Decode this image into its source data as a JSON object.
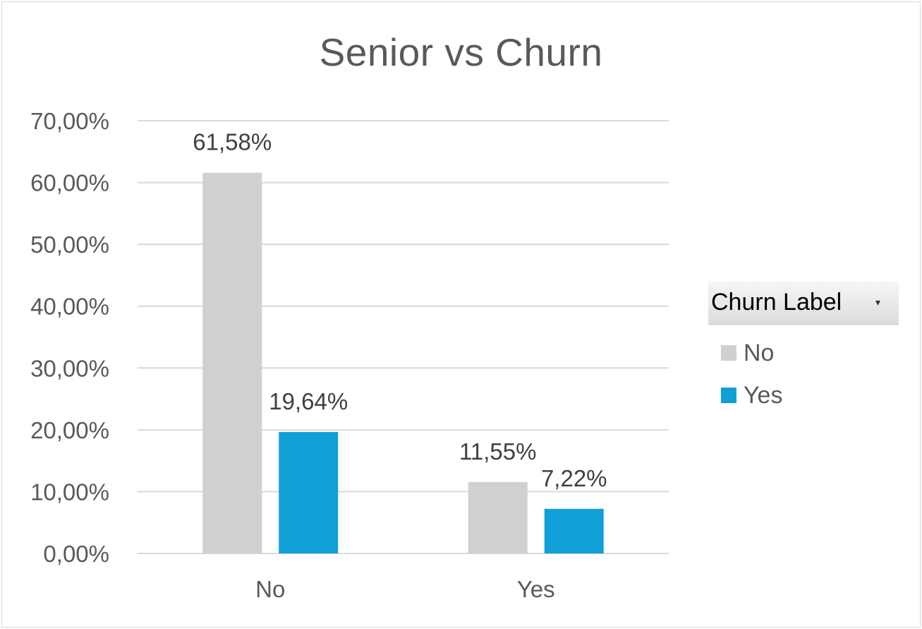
{
  "chart_data": {
    "type": "bar",
    "title": "Senior vs Churn",
    "categories": [
      "No",
      "Yes"
    ],
    "series": [
      {
        "name": "No",
        "color": "#d0d0d0",
        "values": [
          61.58,
          11.55
        ],
        "labels": [
          "61,58%",
          "11,55%"
        ]
      },
      {
        "name": "Yes",
        "color": "#119fd7",
        "values": [
          19.64,
          7.22
        ],
        "labels": [
          "19,64%",
          "7,22%"
        ]
      }
    ],
    "ylim": [
      0,
      70
    ],
    "yticks": [
      0,
      10,
      20,
      30,
      40,
      50,
      60,
      70
    ],
    "ytick_labels": [
      "0,00%",
      "10,00%",
      "20,00%",
      "30,00%",
      "40,00%",
      "50,00%",
      "60,00%",
      "70,00%"
    ],
    "grid": true,
    "legend_title": "Churn Label",
    "legend_position": "right"
  },
  "legend": {
    "title": "Churn Label",
    "dropdown_icon": "▾"
  }
}
